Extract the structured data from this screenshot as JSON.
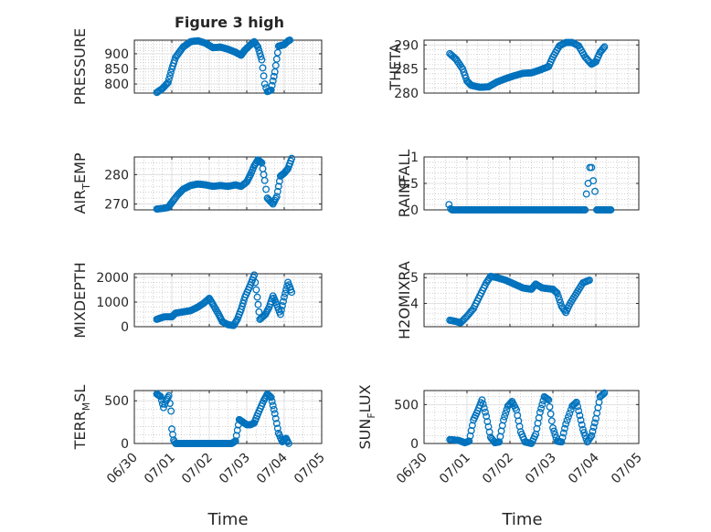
{
  "title": "Figure 3 high",
  "x_axis": {
    "label": "Time",
    "tick_labels": [
      "06/30",
      "07/01",
      "07/02",
      "07/03",
      "07/04",
      "07/05"
    ]
  },
  "colors": {
    "marker": "#0072bd",
    "axis": "#262626",
    "grid": "#b5b5b5",
    "background": "#ffffff"
  },
  "chart_data": [
    {
      "type": "scatter",
      "ylabel": "PRESSURE",
      "ylabel_parts": [
        {
          "t": "PRESSURE",
          "sub": false
        }
      ],
      "yticks": [
        800,
        850,
        900
      ],
      "ytick_labels": [
        "800",
        "850",
        "900"
      ],
      "ylim": [
        770,
        945
      ],
      "xlim": [
        0,
        5
      ],
      "grid": true,
      "anchors": [
        [
          0.6,
          772
        ],
        [
          0.75,
          785
        ],
        [
          0.9,
          805
        ],
        [
          1.0,
          850
        ],
        [
          1.1,
          888
        ],
        [
          1.3,
          922
        ],
        [
          1.5,
          940
        ],
        [
          1.7,
          943
        ],
        [
          1.9,
          935
        ],
        [
          2.1,
          920
        ],
        [
          2.3,
          922
        ],
        [
          2.5,
          915
        ],
        [
          2.7,
          905
        ],
        [
          2.85,
          895
        ],
        [
          2.95,
          912
        ],
        [
          3.1,
          930
        ],
        [
          3.2,
          940
        ],
        [
          3.3,
          922
        ],
        [
          3.4,
          880
        ],
        [
          3.48,
          800
        ],
        [
          3.55,
          775
        ],
        [
          3.65,
          780
        ],
        [
          3.75,
          840
        ],
        [
          3.85,
          925
        ],
        [
          4.0,
          930
        ],
        [
          4.1,
          942
        ],
        [
          4.15,
          945
        ]
      ]
    },
    {
      "type": "scatter",
      "ylabel": "THETA",
      "ylabel_parts": [
        {
          "t": "THETA",
          "sub": false
        }
      ],
      "yticks": [
        280,
        285,
        290
      ],
      "ytick_labels": [
        "280",
        "285",
        "290"
      ],
      "ylim": [
        280,
        291
      ],
      "xlim": [
        0,
        5
      ],
      "grid": true,
      "anchors": [
        [
          0.6,
          288.2
        ],
        [
          0.75,
          287
        ],
        [
          0.9,
          285
        ],
        [
          1.0,
          282.5
        ],
        [
          1.1,
          281.6
        ],
        [
          1.3,
          281.2
        ],
        [
          1.5,
          281.3
        ],
        [
          1.7,
          282.3
        ],
        [
          1.9,
          283
        ],
        [
          2.1,
          283.6
        ],
        [
          2.3,
          284.1
        ],
        [
          2.5,
          284.2
        ],
        [
          2.7,
          284.8
        ],
        [
          2.9,
          285.5
        ],
        [
          3.0,
          287.5
        ],
        [
          3.15,
          289.8
        ],
        [
          3.3,
          290.5
        ],
        [
          3.45,
          290.5
        ],
        [
          3.6,
          289.8
        ],
        [
          3.75,
          287.5
        ],
        [
          3.9,
          286
        ],
        [
          4.0,
          286.5
        ],
        [
          4.1,
          288.5
        ],
        [
          4.2,
          289.6
        ]
      ]
    },
    {
      "type": "scatter",
      "ylabel": "AIR_TEMP",
      "ylabel_parts": [
        {
          "t": "AIR",
          "sub": false
        },
        {
          "t": "T",
          "sub": true
        },
        {
          "t": "EMP",
          "sub": false
        }
      ],
      "yticks": [
        270,
        280
      ],
      "ytick_labels": [
        "270",
        "280"
      ],
      "ylim": [
        268,
        286
      ],
      "xlim": [
        0,
        5
      ],
      "grid": true,
      "anchors": [
        [
          0.6,
          268.3
        ],
        [
          0.75,
          268.5
        ],
        [
          0.9,
          268.8
        ],
        [
          1.0,
          270.5
        ],
        [
          1.15,
          273
        ],
        [
          1.3,
          275
        ],
        [
          1.5,
          276.3
        ],
        [
          1.7,
          276.8
        ],
        [
          1.9,
          276.5
        ],
        [
          2.1,
          276
        ],
        [
          2.3,
          276.3
        ],
        [
          2.5,
          276
        ],
        [
          2.7,
          276.5
        ],
        [
          2.85,
          276
        ],
        [
          3.0,
          277.5
        ],
        [
          3.1,
          280
        ],
        [
          3.2,
          283
        ],
        [
          3.3,
          285
        ],
        [
          3.4,
          284
        ],
        [
          3.48,
          278
        ],
        [
          3.55,
          272
        ],
        [
          3.7,
          270
        ],
        [
          3.8,
          272.5
        ],
        [
          3.9,
          279.5
        ],
        [
          4.0,
          280.5
        ],
        [
          4.1,
          282
        ],
        [
          4.2,
          285.5
        ]
      ]
    },
    {
      "type": "scatter",
      "ylabel": "RAINFALL",
      "ylabel_parts": [
        {
          "t": "RAINFALL",
          "sub": false
        }
      ],
      "yticks": [
        0,
        0.5,
        1
      ],
      "ytick_labels": [
        "0",
        "0.5",
        "1"
      ],
      "ylim": [
        0,
        1
      ],
      "xlim": [
        0,
        5
      ],
      "grid": true,
      "anchors": [
        [
          0.58,
          0.1
        ],
        [
          0.62,
          0.02
        ],
        [
          0.65,
          0
        ],
        [
          3.75,
          0
        ],
        [
          3.78,
          0.3
        ],
        [
          3.82,
          0.5
        ],
        [
          3.86,
          0.8
        ],
        [
          3.9,
          0.8
        ],
        [
          3.94,
          0.55
        ],
        [
          3.98,
          0.35
        ],
        [
          4.02,
          0
        ],
        [
          4.35,
          0
        ]
      ]
    },
    {
      "type": "scatter",
      "ylabel": "MIXDEPTH",
      "ylabel_parts": [
        {
          "t": "MIXDEPTH",
          "sub": false
        }
      ],
      "yticks": [
        0,
        1000,
        2000
      ],
      "ytick_labels": [
        "0",
        "1000",
        "2000"
      ],
      "ylim": [
        0,
        2150
      ],
      "xlim": [
        0,
        5
      ],
      "grid": true,
      "anchors": [
        [
          0.6,
          300
        ],
        [
          0.8,
          400
        ],
        [
          1.0,
          400
        ],
        [
          1.1,
          550
        ],
        [
          1.3,
          600
        ],
        [
          1.5,
          650
        ],
        [
          1.7,
          800
        ],
        [
          1.85,
          950
        ],
        [
          2.0,
          1150
        ],
        [
          2.1,
          900
        ],
        [
          2.25,
          500
        ],
        [
          2.35,
          200
        ],
        [
          2.5,
          80
        ],
        [
          2.65,
          50
        ],
        [
          2.75,
          300
        ],
        [
          2.85,
          700
        ],
        [
          2.95,
          1200
        ],
        [
          3.1,
          1700
        ],
        [
          3.2,
          2100
        ],
        [
          3.28,
          1200
        ],
        [
          3.35,
          300
        ],
        [
          3.5,
          500
        ],
        [
          3.6,
          800
        ],
        [
          3.7,
          1250
        ],
        [
          3.8,
          900
        ],
        [
          3.9,
          500
        ],
        [
          4.0,
          1200
        ],
        [
          4.1,
          1800
        ],
        [
          4.2,
          1400
        ]
      ]
    },
    {
      "type": "scatter",
      "ylabel": "H2OMIXRA",
      "ylabel_parts": [
        {
          "t": "H2OMIXRA",
          "sub": false
        }
      ],
      "yticks": [
        4,
        5
      ],
      "ytick_labels": [
        "4",
        "5"
      ],
      "ylim": [
        3.1,
        5.15
      ],
      "xlim": [
        0,
        5
      ],
      "grid": true,
      "anchors": [
        [
          0.6,
          3.35
        ],
        [
          0.75,
          3.3
        ],
        [
          0.85,
          3.25
        ],
        [
          1.0,
          3.5
        ],
        [
          1.15,
          3.8
        ],
        [
          1.3,
          4.3
        ],
        [
          1.45,
          4.8
        ],
        [
          1.55,
          5.05
        ],
        [
          1.7,
          5.0
        ],
        [
          1.9,
          4.9
        ],
        [
          2.1,
          4.75
        ],
        [
          2.3,
          4.6
        ],
        [
          2.5,
          4.55
        ],
        [
          2.6,
          4.75
        ],
        [
          2.75,
          4.6
        ],
        [
          3.0,
          4.55
        ],
        [
          3.1,
          4.4
        ],
        [
          3.2,
          3.9
        ],
        [
          3.3,
          3.65
        ],
        [
          3.4,
          4.0
        ],
        [
          3.55,
          4.4
        ],
        [
          3.7,
          4.8
        ],
        [
          3.85,
          4.9
        ]
      ]
    },
    {
      "type": "scatter",
      "ylabel": "TERR_MSL",
      "ylabel_parts": [
        {
          "t": "TERR",
          "sub": false
        },
        {
          "t": "M",
          "sub": true
        },
        {
          "t": "SL",
          "sub": false
        }
      ],
      "yticks": [
        0,
        500
      ],
      "ytick_labels": [
        "0",
        "500"
      ],
      "ylim": [
        0,
        620
      ],
      "xlim": [
        0,
        5
      ],
      "grid": true,
      "anchors": [
        [
          0.6,
          580
        ],
        [
          0.7,
          550
        ],
        [
          0.78,
          420
        ],
        [
          0.85,
          500
        ],
        [
          0.92,
          560
        ],
        [
          0.98,
          380
        ],
        [
          1.0,
          170
        ],
        [
          1.05,
          40
        ],
        [
          1.1,
          0
        ],
        [
          2.6,
          0
        ],
        [
          2.7,
          30
        ],
        [
          2.8,
          280
        ],
        [
          2.9,
          250
        ],
        [
          3.0,
          220
        ],
        [
          3.1,
          220
        ],
        [
          3.2,
          240
        ],
        [
          3.3,
          350
        ],
        [
          3.45,
          500
        ],
        [
          3.55,
          580
        ],
        [
          3.65,
          540
        ],
        [
          3.75,
          350
        ],
        [
          3.85,
          120
        ],
        [
          3.95,
          20
        ],
        [
          4.05,
          60
        ],
        [
          4.12,
          0
        ]
      ]
    },
    {
      "type": "scatter",
      "ylabel": "SUN_FLUX",
      "ylabel_parts": [
        {
          "t": "SUN",
          "sub": false
        },
        {
          "t": "F",
          "sub": true
        },
        {
          "t": "LUX",
          "sub": false
        }
      ],
      "yticks": [
        0,
        500
      ],
      "ytick_labels": [
        "0",
        "500"
      ],
      "ylim": [
        0,
        680
      ],
      "xlim": [
        0,
        5
      ],
      "grid": true,
      "anchors": [
        [
          0.6,
          50
        ],
        [
          0.8,
          40
        ],
        [
          0.95,
          10
        ],
        [
          1.05,
          30
        ],
        [
          1.15,
          300
        ],
        [
          1.25,
          420
        ],
        [
          1.35,
          560
        ],
        [
          1.45,
          350
        ],
        [
          1.55,
          80
        ],
        [
          1.65,
          10
        ],
        [
          1.75,
          20
        ],
        [
          1.85,
          300
        ],
        [
          1.95,
          480
        ],
        [
          2.05,
          540
        ],
        [
          2.15,
          430
        ],
        [
          2.25,
          150
        ],
        [
          2.35,
          20
        ],
        [
          2.5,
          0
        ],
        [
          2.6,
          120
        ],
        [
          2.7,
          400
        ],
        [
          2.8,
          600
        ],
        [
          2.9,
          560
        ],
        [
          3.0,
          200
        ],
        [
          3.1,
          30
        ],
        [
          3.2,
          20
        ],
        [
          3.3,
          250
        ],
        [
          3.45,
          480
        ],
        [
          3.55,
          530
        ],
        [
          3.6,
          420
        ],
        [
          3.7,
          180
        ],
        [
          3.8,
          20
        ],
        [
          3.9,
          100
        ],
        [
          4.0,
          320
        ],
        [
          4.1,
          600
        ],
        [
          4.2,
          650
        ]
      ]
    }
  ]
}
